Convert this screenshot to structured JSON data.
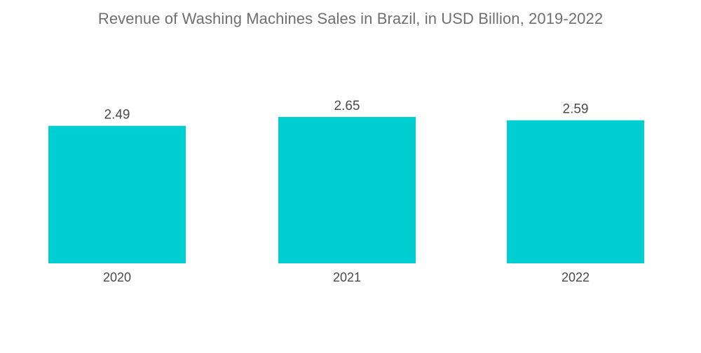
{
  "chart_data": {
    "type": "bar",
    "title": "Revenue of Washing Machines Sales in Brazil, in USD Billion, 2019-2022",
    "categories": [
      "2020",
      "2021",
      "2022"
    ],
    "values": [
      2.49,
      2.65,
      2.59
    ],
    "value_labels": [
      "2.49",
      "2.65",
      "2.59"
    ],
    "xlabel": "",
    "ylabel": "",
    "ylim": [
      0,
      2.65
    ],
    "grid": false,
    "bar_color": "#00CED1"
  }
}
